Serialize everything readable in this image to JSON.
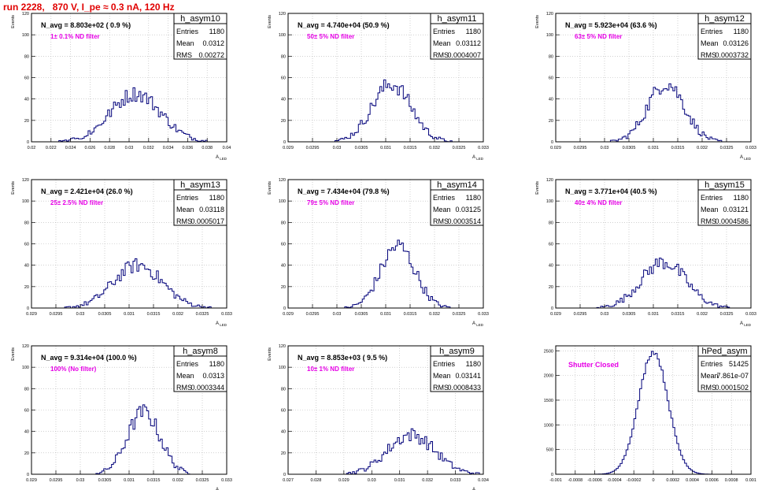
{
  "run_title": "run 2228,   870 V, I_pe ≈ 0.3 nA, 120 Hz",
  "colors": {
    "title": "#e00000",
    "hist": "#00007a",
    "filter_label": "#e600e6",
    "grid": "#b4b4b4",
    "frame": "#000000"
  },
  "chart_data": [
    {
      "type": "bar",
      "name": "h_asym10",
      "entries": "1180",
      "mean": "0.0312",
      "rms": "0.00272",
      "navg": "N_avg = 8.803e+02 ( 0.9 %)",
      "filter": "1± 0.1% ND filter",
      "xlabel": "A_LED",
      "ylabel": "Events",
      "xlim": [
        0.02,
        0.041
      ],
      "ylim": [
        0,
        120
      ],
      "xticks": [
        "0.02",
        "0.022",
        "0.024",
        "0.026",
        "0.028",
        "0.03",
        "0.032",
        "0.034",
        "0.036",
        "0.038",
        "0.04"
      ],
      "yticks": [
        "0",
        "20",
        "40",
        "60",
        "80",
        "100",
        "120"
      ],
      "mean_val": 0.0312,
      "sigma": 0.00272,
      "peak": 45
    },
    {
      "type": "bar",
      "name": "h_asym11",
      "entries": "1180",
      "mean": "0.03112",
      "rms": "0.0004007",
      "navg": "N_avg = 4.740e+04 (50.9 %)",
      "filter": "50± 5% ND filter",
      "xlabel": "A_LED",
      "ylabel": "Events",
      "xlim": [
        0.029,
        0.033
      ],
      "ylim": [
        0,
        120
      ],
      "xticks": [
        "0.029",
        "0.0295",
        "0.03",
        "0.0305",
        "0.031",
        "0.0315",
        "0.032",
        "0.0325",
        "0.033"
      ],
      "yticks": [
        "0",
        "20",
        "40",
        "60",
        "80",
        "100",
        "120"
      ],
      "mean_val": 0.03112,
      "sigma": 0.0004007,
      "peak": 54
    },
    {
      "type": "bar",
      "name": "h_asym12",
      "entries": "1180",
      "mean": "0.03126",
      "rms": "0.0003732",
      "navg": "N_avg = 5.923e+04 (63.6 %)",
      "filter": "63± 5% ND filter",
      "xlabel": "A_LED",
      "ylabel": "Events",
      "xlim": [
        0.029,
        0.033
      ],
      "ylim": [
        0,
        120
      ],
      "xticks": [
        "0.029",
        "0.0295",
        "0.03",
        "0.0305",
        "0.031",
        "0.0315",
        "0.032",
        "0.0325",
        "0.033"
      ],
      "yticks": [
        "0",
        "20",
        "40",
        "60",
        "80",
        "100",
        "120"
      ],
      "mean_val": 0.03126,
      "sigma": 0.0003732,
      "peak": 55
    },
    {
      "type": "bar",
      "name": "h_asym13",
      "entries": "1180",
      "mean": "0.03118",
      "rms": "0.0005017",
      "navg": "N_avg = 2.421e+04 (26.0 %)",
      "filter": "25± 2.5% ND filter",
      "xlabel": "A_LED",
      "ylabel": "Events",
      "xlim": [
        0.029,
        0.033
      ],
      "ylim": [
        0,
        120
      ],
      "xticks": [
        "0.029",
        "0.0295",
        "0.03",
        "0.0305",
        "0.031",
        "0.0315",
        "0.032",
        "0.0325",
        "0.033"
      ],
      "yticks": [
        "0",
        "20",
        "40",
        "60",
        "80",
        "100",
        "120"
      ],
      "mean_val": 0.03118,
      "sigma": 0.0005017,
      "peak": 40
    },
    {
      "type": "bar",
      "name": "h_asym14",
      "entries": "1180",
      "mean": "0.03125",
      "rms": "0.0003514",
      "navg": "N_avg = 7.434e+04 (79.8 %)",
      "filter": "79± 5% ND filter",
      "xlabel": "A_LED",
      "ylabel": "Events",
      "xlim": [
        0.029,
        0.033
      ],
      "ylim": [
        0,
        120
      ],
      "xticks": [
        "0.029",
        "0.0295",
        "0.03",
        "0.0305",
        "0.031",
        "0.0315",
        "0.032",
        "0.0325",
        "0.033"
      ],
      "yticks": [
        "0",
        "20",
        "40",
        "60",
        "80",
        "100",
        "120"
      ],
      "mean_val": 0.03125,
      "sigma": 0.0003514,
      "peak": 58
    },
    {
      "type": "bar",
      "name": "h_asym15",
      "entries": "1180",
      "mean": "0.03121",
      "rms": "0.0004586",
      "navg": "N_avg = 3.771e+04 (40.5 %)",
      "filter": "40± 4% ND filter",
      "xlabel": "A_LED",
      "ylabel": "Events",
      "xlim": [
        0.029,
        0.033
      ],
      "ylim": [
        0,
        120
      ],
      "xticks": [
        "0.029",
        "0.0295",
        "0.03",
        "0.0305",
        "0.031",
        "0.0315",
        "0.032",
        "0.0325",
        "0.033"
      ],
      "yticks": [
        "0",
        "20",
        "40",
        "60",
        "80",
        "100",
        "120"
      ],
      "mean_val": 0.03121,
      "sigma": 0.0004586,
      "peak": 43
    },
    {
      "type": "bar",
      "name": "h_asym8",
      "entries": "1180",
      "mean": "0.0313",
      "rms": "0.0003344",
      "navg": "N_avg = 9.314e+04 (100.0 %)",
      "filter": "100% (No filter)",
      "xlabel": "A_LED",
      "ylabel": "Events",
      "xlim": [
        0.029,
        0.033
      ],
      "ylim": [
        0,
        120
      ],
      "xticks": [
        "0.029",
        "0.0295",
        "0.03",
        "0.0305",
        "0.031",
        "0.0315",
        "0.032",
        "0.0325",
        "0.033"
      ],
      "yticks": [
        "0",
        "20",
        "40",
        "60",
        "80",
        "100",
        "120"
      ],
      "mean_val": 0.0313,
      "sigma": 0.0003344,
      "peak": 58
    },
    {
      "type": "bar",
      "name": "h_asym9",
      "entries": "1180",
      "mean": "0.03141",
      "rms": "0.0008433",
      "navg": "N_avg = 8.853e+03 ( 9.5 %)",
      "filter": "10± 1% ND filter",
      "xlabel": "A_LED",
      "ylabel": "Events",
      "xlim": [
        0.027,
        0.034
      ],
      "ylim": [
        0,
        120
      ],
      "xticks": [
        "0.027",
        "0.028",
        "0.029",
        "0.03",
        "0.031",
        "0.032",
        "0.033",
        "0.034"
      ],
      "yticks": [
        "0",
        "20",
        "40",
        "60",
        "80",
        "100",
        "120"
      ],
      "mean_val": 0.03141,
      "sigma": 0.0008433,
      "peak": 37
    },
    {
      "type": "bar",
      "name": "hPed_asym",
      "entries": "51425",
      "mean": "7.861e-07",
      "rms": "0.0001502",
      "navg": "",
      "filter": "Shutter Closed",
      "xlabel": "",
      "ylabel": "",
      "xlim": [
        -0.001,
        0.001
      ],
      "ylim": [
        0,
        2600
      ],
      "xticks": [
        "-0.001",
        "-0.0008",
        "-0.0006",
        "-0.0004",
        "-0.0002",
        "0",
        "0.0002",
        "0.0004",
        "0.0006",
        "0.0008",
        "0.001"
      ],
      "yticks": [
        "0",
        "500",
        "1000",
        "1500",
        "2000",
        "2500"
      ],
      "mean_val": 0.0,
      "sigma": 0.0001502,
      "peak": 2480
    }
  ],
  "stats_labels": {
    "entries": "Entries",
    "mean": "Mean",
    "rms": "RMS"
  }
}
